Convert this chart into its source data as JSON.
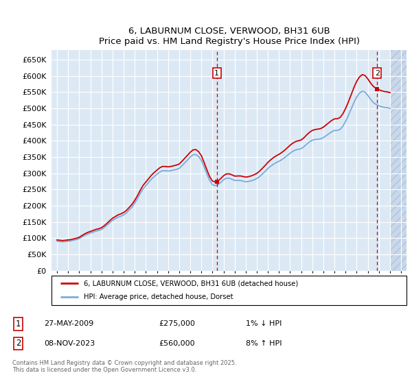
{
  "title": "6, LABURNUM CLOSE, VERWOOD, BH31 6UB",
  "subtitle": "Price paid vs. HM Land Registry's House Price Index (HPI)",
  "ylim": [
    0,
    680000
  ],
  "yticks": [
    0,
    50000,
    100000,
    150000,
    200000,
    250000,
    300000,
    350000,
    400000,
    450000,
    500000,
    550000,
    600000,
    650000
  ],
  "xmin": 1994.5,
  "xmax": 2026.5,
  "bg_color": "#dce9f5",
  "hatch_color": "#c8d8ea",
  "grid_color": "#ffffff",
  "line_red": "#cc0000",
  "line_blue": "#7aabda",
  "sale1_x": 2009.4,
  "sale1_y": 275000,
  "sale1_label": "1",
  "sale1_date": "27-MAY-2009",
  "sale1_price": "£275,000",
  "sale1_hpi": "1% ↓ HPI",
  "sale2_x": 2023.85,
  "sale2_y": 560000,
  "sale2_label": "2",
  "sale2_date": "08-NOV-2023",
  "sale2_price": "£560,000",
  "sale2_hpi": "8% ↑ HPI",
  "legend_line1": "6, LABURNUM CLOSE, VERWOOD, BH31 6UB (detached house)",
  "legend_line2": "HPI: Average price, detached house, Dorset",
  "footnote": "Contains HM Land Registry data © Crown copyright and database right 2025.\nThis data is licensed under the Open Government Licence v3.0.",
  "hpi_data_x": [
    1995.0,
    1995.25,
    1995.5,
    1995.75,
    1996.0,
    1996.25,
    1996.5,
    1996.75,
    1997.0,
    1997.25,
    1997.5,
    1997.75,
    1998.0,
    1998.25,
    1998.5,
    1998.75,
    1999.0,
    1999.25,
    1999.5,
    1999.75,
    2000.0,
    2000.25,
    2000.5,
    2000.75,
    2001.0,
    2001.25,
    2001.5,
    2001.75,
    2002.0,
    2002.25,
    2002.5,
    2002.75,
    2003.0,
    2003.25,
    2003.5,
    2003.75,
    2004.0,
    2004.25,
    2004.5,
    2004.75,
    2005.0,
    2005.25,
    2005.5,
    2005.75,
    2006.0,
    2006.25,
    2006.5,
    2006.75,
    2007.0,
    2007.25,
    2007.5,
    2007.75,
    2008.0,
    2008.25,
    2008.5,
    2008.75,
    2009.0,
    2009.25,
    2009.5,
    2009.75,
    2010.0,
    2010.25,
    2010.5,
    2010.75,
    2011.0,
    2011.25,
    2011.5,
    2011.75,
    2012.0,
    2012.25,
    2012.5,
    2012.75,
    2013.0,
    2013.25,
    2013.5,
    2013.75,
    2014.0,
    2014.25,
    2014.5,
    2014.75,
    2015.0,
    2015.25,
    2015.5,
    2015.75,
    2016.0,
    2016.25,
    2016.5,
    2016.75,
    2017.0,
    2017.25,
    2017.5,
    2017.75,
    2018.0,
    2018.25,
    2018.5,
    2018.75,
    2019.0,
    2019.25,
    2019.5,
    2019.75,
    2020.0,
    2020.25,
    2020.5,
    2020.75,
    2021.0,
    2021.25,
    2021.5,
    2021.75,
    2022.0,
    2022.25,
    2022.5,
    2022.75,
    2023.0,
    2023.25,
    2023.5,
    2023.75,
    2024.0,
    2024.25,
    2024.5,
    2024.75,
    2025.0
  ],
  "hpi_data_y": [
    91000,
    90000,
    89000,
    90000,
    91000,
    92000,
    94000,
    96000,
    99000,
    104000,
    109000,
    113000,
    116000,
    119000,
    122000,
    124000,
    127000,
    133000,
    140000,
    148000,
    155000,
    160000,
    165000,
    168000,
    172000,
    178000,
    187000,
    196000,
    208000,
    222000,
    238000,
    252000,
    262000,
    272000,
    282000,
    290000,
    297000,
    304000,
    308000,
    308000,
    307000,
    308000,
    310000,
    312000,
    315000,
    323000,
    332000,
    341000,
    350000,
    357000,
    358000,
    352000,
    340000,
    320000,
    298000,
    278000,
    265000,
    262000,
    265000,
    272000,
    280000,
    285000,
    285000,
    282000,
    278000,
    278000,
    278000,
    276000,
    274000,
    275000,
    277000,
    280000,
    284000,
    290000,
    298000,
    306000,
    315000,
    322000,
    328000,
    333000,
    337000,
    342000,
    348000,
    355000,
    362000,
    368000,
    372000,
    374000,
    376000,
    382000,
    390000,
    397000,
    402000,
    404000,
    405000,
    406000,
    410000,
    416000,
    422000,
    428000,
    432000,
    432000,
    435000,
    445000,
    460000,
    478000,
    498000,
    518000,
    535000,
    547000,
    553000,
    550000,
    540000,
    528000,
    518000,
    512000,
    508000,
    505000,
    503000,
    502000,
    500000
  ]
}
